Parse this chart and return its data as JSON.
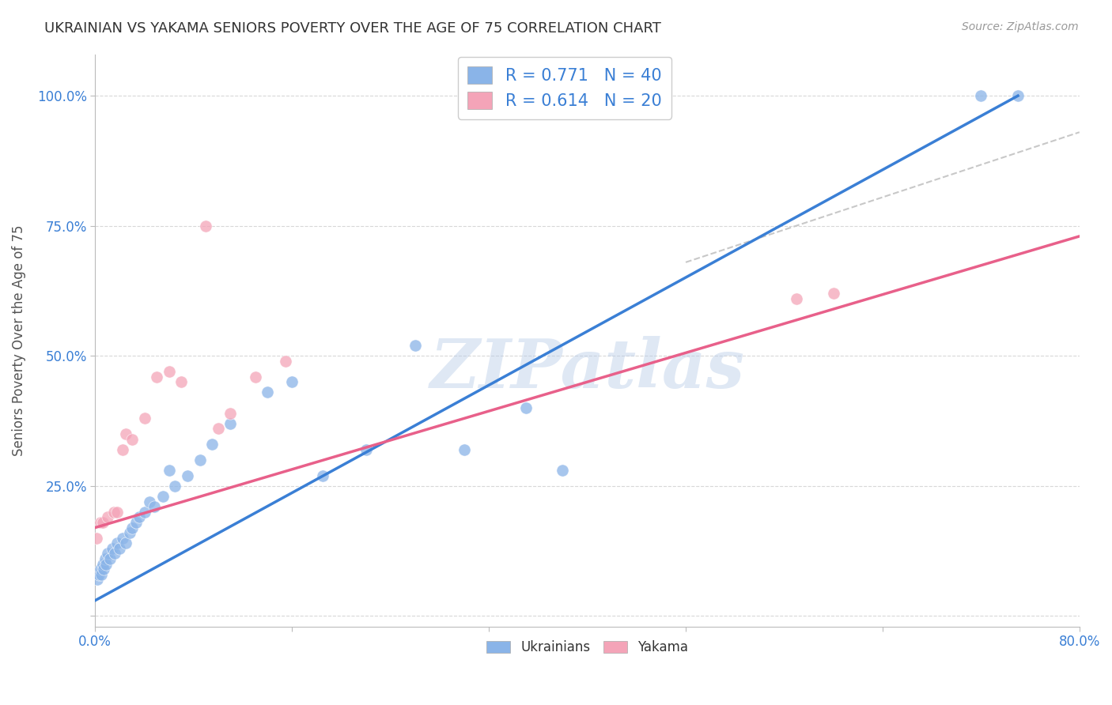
{
  "title": "UKRAINIAN VS YAKAMA SENIORS POVERTY OVER THE AGE OF 75 CORRELATION CHART",
  "source": "Source: ZipAtlas.com",
  "ylabel": "Seniors Poverty Over the Age of 75",
  "xlim": [
    0.0,
    0.8
  ],
  "ylim": [
    -0.02,
    1.08
  ],
  "xticks": [
    0.0,
    0.16,
    0.32,
    0.48,
    0.64,
    0.8
  ],
  "xtick_labels": [
    "0.0%",
    "",
    "",
    "",
    "",
    "80.0%"
  ],
  "yticks": [
    0.0,
    0.25,
    0.5,
    0.75,
    1.0
  ],
  "ytick_labels": [
    "",
    "25.0%",
    "50.0%",
    "75.0%",
    "100.0%"
  ],
  "background_color": "#ffffff",
  "grid_color": "#d8d8d8",
  "watermark": "ZIPatlas",
  "ukrainians_color": "#8ab4e8",
  "yakama_color": "#f4a4b8",
  "line_blue": "#3a7fd5",
  "line_pink": "#e8608a",
  "line_dashed_color": "#c8c8c8",
  "R_blue": 0.771,
  "N_blue": 40,
  "R_pink": 0.614,
  "N_pink": 20,
  "ukrainians_x": [
    0.002,
    0.003,
    0.004,
    0.005,
    0.006,
    0.007,
    0.008,
    0.009,
    0.01,
    0.012,
    0.014,
    0.016,
    0.018,
    0.02,
    0.022,
    0.025,
    0.028,
    0.03,
    0.033,
    0.036,
    0.04,
    0.044,
    0.048,
    0.055,
    0.06,
    0.065,
    0.075,
    0.085,
    0.095,
    0.11,
    0.14,
    0.16,
    0.185,
    0.22,
    0.26,
    0.3,
    0.35,
    0.38,
    0.72,
    0.75
  ],
  "ukrainians_y": [
    0.07,
    0.08,
    0.09,
    0.08,
    0.1,
    0.09,
    0.11,
    0.1,
    0.12,
    0.11,
    0.13,
    0.12,
    0.14,
    0.13,
    0.15,
    0.14,
    0.16,
    0.17,
    0.18,
    0.19,
    0.2,
    0.22,
    0.21,
    0.23,
    0.28,
    0.25,
    0.27,
    0.3,
    0.33,
    0.37,
    0.43,
    0.45,
    0.27,
    0.32,
    0.52,
    0.32,
    0.4,
    0.28,
    1.0,
    1.0
  ],
  "yakama_x": [
    0.001,
    0.004,
    0.006,
    0.01,
    0.015,
    0.018,
    0.022,
    0.025,
    0.03,
    0.04,
    0.05,
    0.06,
    0.07,
    0.09,
    0.1,
    0.11,
    0.13,
    0.155,
    0.57,
    0.6
  ],
  "yakama_y": [
    0.15,
    0.18,
    0.18,
    0.19,
    0.2,
    0.2,
    0.32,
    0.35,
    0.34,
    0.38,
    0.46,
    0.47,
    0.45,
    0.75,
    0.36,
    0.39,
    0.46,
    0.49,
    0.61,
    0.62
  ],
  "blue_line_x": [
    0.0,
    0.75
  ],
  "blue_line_y": [
    0.03,
    1.0
  ],
  "pink_line_x": [
    0.0,
    0.8
  ],
  "pink_line_y": [
    0.17,
    0.73
  ],
  "dashed_line_x": [
    0.48,
    0.8
  ],
  "dashed_line_y": [
    0.68,
    0.93
  ]
}
